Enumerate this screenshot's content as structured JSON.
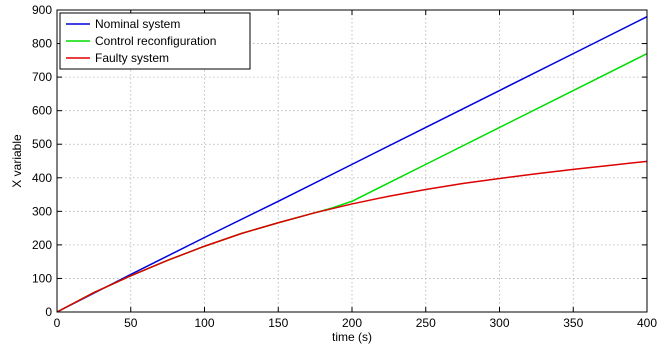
{
  "chart_data": {
    "type": "line",
    "title": "",
    "xlabel": "time (s)",
    "ylabel": "X variable",
    "xlim": [
      0,
      400
    ],
    "ylim": [
      0,
      900
    ],
    "xticks": [
      0,
      50,
      100,
      150,
      200,
      250,
      300,
      350,
      400
    ],
    "yticks": [
      0,
      100,
      200,
      300,
      400,
      500,
      600,
      700,
      800,
      900
    ],
    "grid": true,
    "legend_position": "top-left",
    "series": [
      {
        "name": "Nominal system",
        "color": "#0000dd",
        "x": [
          0,
          50,
          100,
          150,
          200,
          250,
          300,
          350,
          400
        ],
        "values": [
          0,
          112,
          222,
          330,
          440,
          550,
          660,
          770,
          880
        ]
      },
      {
        "name": "Control reconfiguration",
        "color": "#00dd00",
        "x": [
          0,
          25,
          50,
          75,
          100,
          125,
          150,
          175,
          185,
          200,
          250,
          300,
          350,
          400
        ],
        "values": [
          0,
          58,
          108,
          154,
          196,
          234,
          266,
          296,
          308,
          330,
          440,
          550,
          660,
          770
        ]
      },
      {
        "name": "Faulty system",
        "color": "#dd0000",
        "x": [
          0,
          25,
          50,
          75,
          100,
          125,
          150,
          175,
          200,
          225,
          250,
          275,
          300,
          325,
          350,
          375,
          400
        ],
        "values": [
          0,
          58,
          108,
          154,
          196,
          234,
          266,
          296,
          322,
          345,
          365,
          383,
          398,
          412,
          425,
          437,
          449
        ]
      }
    ]
  }
}
